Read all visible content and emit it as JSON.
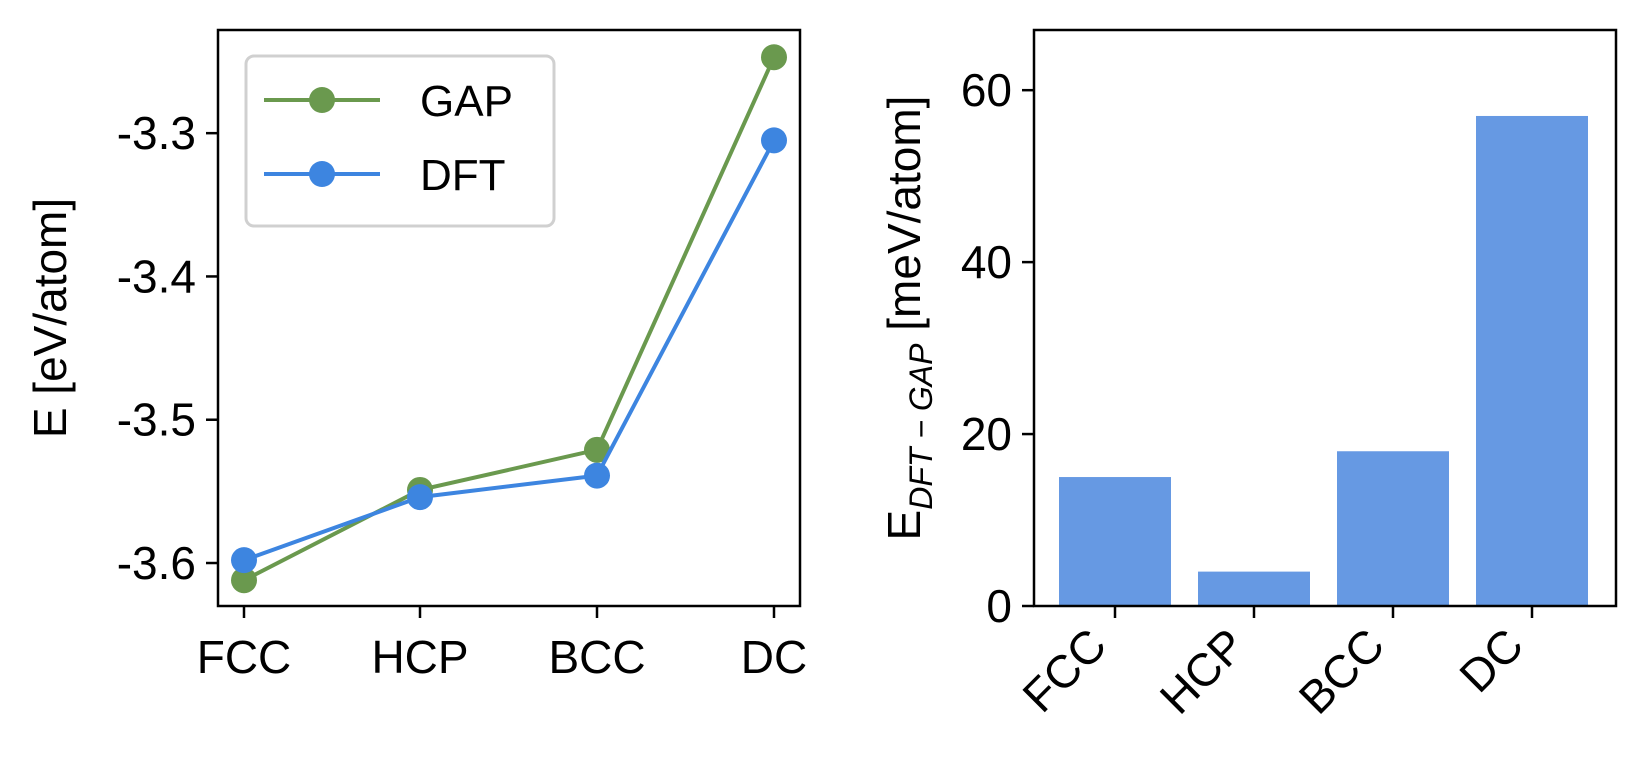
{
  "colors": {
    "gap": "#6a994e",
    "dft": "#3d85e0",
    "bar": "#6699e3",
    "axis": "#000000",
    "legend_border": "#d0d0d0"
  },
  "chart_data": [
    {
      "type": "line",
      "categories": [
        "FCC",
        "HCP",
        "BCC",
        "DC"
      ],
      "xlabel": "",
      "ylabel": "E [eV/atom]",
      "ylim": [
        -3.63,
        -3.228
      ],
      "yticks": [
        -3.3,
        -3.4,
        -3.5,
        -3.6
      ],
      "ytick_labels": [
        "-3.3",
        "-3.4",
        "-3.5",
        "-3.6"
      ],
      "legend_placement": "top-left",
      "grid": false,
      "series": [
        {
          "name": "GAP",
          "color_key": "gap",
          "values": [
            -3.612,
            -3.549,
            -3.521,
            -3.247
          ]
        },
        {
          "name": "DFT",
          "color_key": "dft",
          "values": [
            -3.598,
            -3.554,
            -3.539,
            -3.305
          ]
        }
      ]
    },
    {
      "type": "bar",
      "categories": [
        "FCC",
        "HCP",
        "BCC",
        "DC"
      ],
      "values": [
        15,
        4,
        18,
        57
      ],
      "xlabel": "",
      "ylabel_main": "E",
      "ylabel_subscript": "DFT − GAP",
      "ylabel_unit": " [meV/atom]",
      "ylim": [
        0,
        67
      ],
      "yticks": [
        0,
        20,
        40,
        60
      ],
      "ytick_labels": [
        "0",
        "20",
        "40",
        "60"
      ],
      "grid": false
    }
  ]
}
